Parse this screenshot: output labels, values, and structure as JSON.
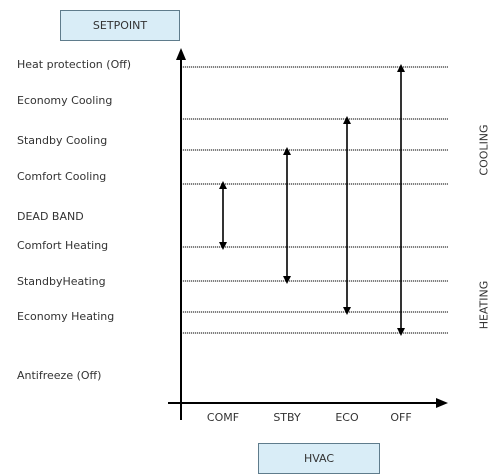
{
  "title_box": {
    "label": "SETPOINT"
  },
  "axis_box": {
    "label": "HVAC"
  },
  "levels": [
    {
      "label": "Heat protection (Off)",
      "line": true
    },
    {
      "label": "Economy Cooling",
      "line": true
    },
    {
      "label": "Standby Cooling",
      "line": true
    },
    {
      "label": "Comfort Cooling",
      "line": true
    },
    {
      "label": "DEAD BAND",
      "line": false
    },
    {
      "label": "Comfort Heating",
      "line": true
    },
    {
      "label": "StandbyHeating",
      "line": true
    },
    {
      "label": "Economy Heating",
      "line": true
    },
    {
      "label": "Antifreeze (Off)",
      "line": true
    }
  ],
  "modes": [
    {
      "label": "COMF",
      "from_level": "Comfort Cooling",
      "to_level": "Comfort Heating"
    },
    {
      "label": "STBY",
      "from_level": "Standby Cooling",
      "to_level": "StandbyHeating"
    },
    {
      "label": "ECO",
      "from_level": "Economy Cooling",
      "to_level": "Economy Heating"
    },
    {
      "label": "OFF",
      "from_level": "Heat protection (Off)",
      "to_level": "Antifreeze (Off)"
    }
  ],
  "side_labels": {
    "cooling": "COOLING",
    "heating": "HEATING"
  },
  "colors": {
    "box_fill": "#d9edf7",
    "box_border": "#5f7c8c",
    "axis": "#000000",
    "text": "#333333"
  }
}
